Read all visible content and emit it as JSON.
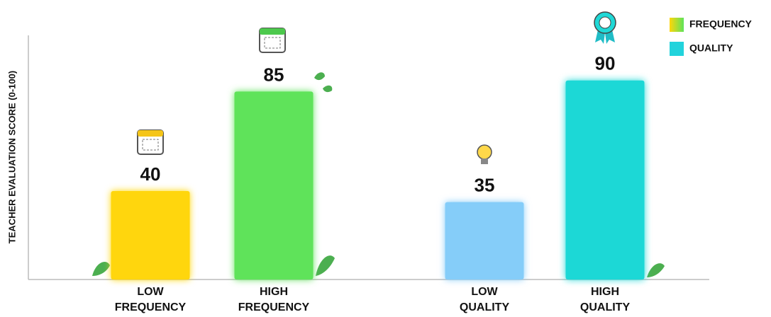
{
  "chart_data": {
    "type": "bar",
    "ylabel": "TEACHER EVALUATION SCORE (0-100)",
    "categories": [
      "LOW FREQUENCY",
      "HIGH FREQUENCY",
      "LOW QUALITY",
      "HIGH QUALITY"
    ],
    "values": [
      40,
      85,
      35,
      90
    ],
    "colors": [
      "#ffd60a",
      "#5fe35a",
      "#85cdf9",
      "#1fd8d6"
    ],
    "ylim": [
      0,
      100
    ],
    "legend": [
      {
        "name": "FREQUENCY",
        "color": "#8fdc3a"
      },
      {
        "name": "QUALITY",
        "color": "#22d3dc"
      }
    ]
  }
}
